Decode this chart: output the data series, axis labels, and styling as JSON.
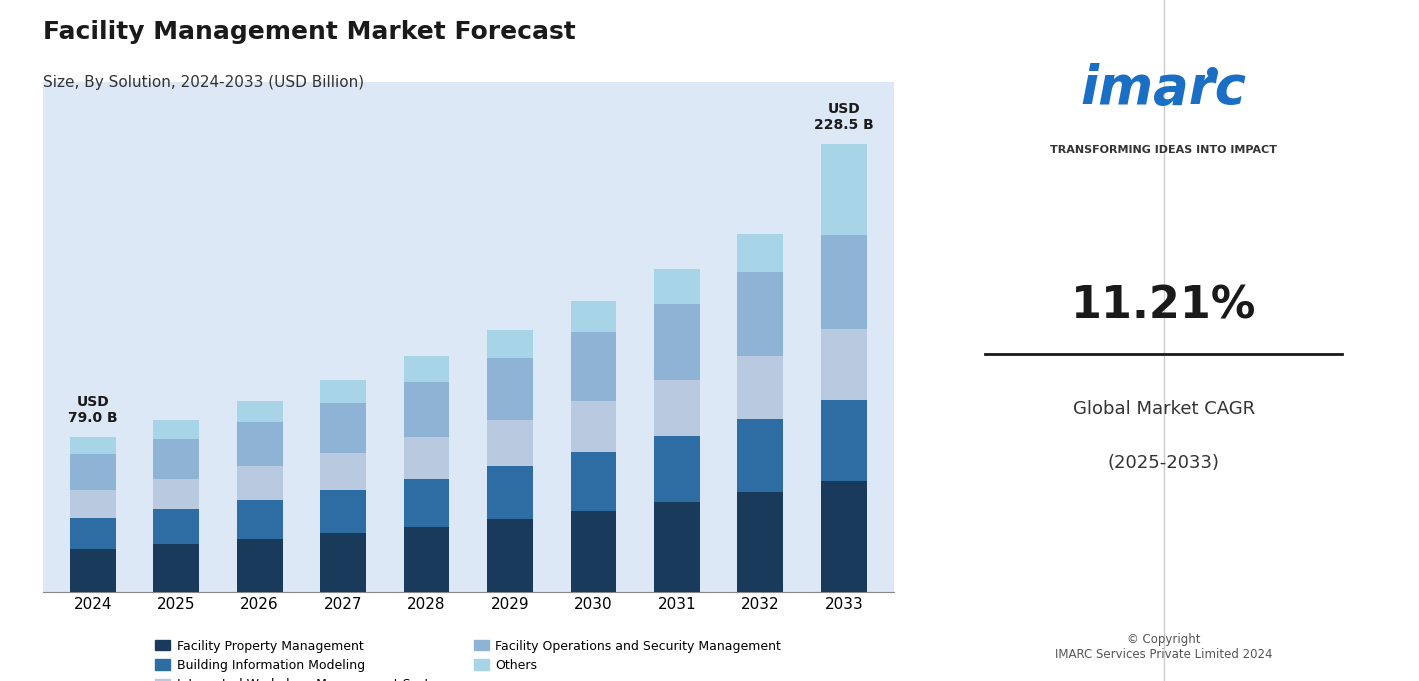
{
  "title": "Facility Management Market Forecast",
  "subtitle": "Size, By Solution, 2024-2033 (USD Billion)",
  "years": [
    2024,
    2025,
    2026,
    2027,
    2028,
    2029,
    2030,
    2031,
    2032,
    2033
  ],
  "segments": {
    "Facility Property Management": [
      22.0,
      24.5,
      27.2,
      30.2,
      33.5,
      37.2,
      41.3,
      45.9,
      51.0,
      56.5
    ],
    "Building Information Modeling": [
      16.0,
      17.8,
      19.8,
      22.0,
      24.5,
      27.2,
      30.2,
      33.5,
      37.2,
      41.5
    ],
    "Integrated Workplace Management System": [
      14.0,
      15.5,
      17.2,
      19.0,
      21.2,
      23.5,
      26.2,
      29.0,
      32.2,
      36.0
    ],
    "Facility Operations and Security Management": [
      18.5,
      20.5,
      22.8,
      25.3,
      28.1,
      31.3,
      34.8,
      38.5,
      42.6,
      48.0
    ],
    "Others": [
      8.5,
      9.4,
      10.5,
      11.7,
      13.0,
      14.4,
      16.0,
      17.8,
      19.7,
      46.5
    ]
  },
  "totals": [
    79.0,
    87.7,
    97.5,
    108.2,
    120.3,
    133.6,
    148.5,
    164.7,
    182.7,
    228.5
  ],
  "colors": {
    "Facility Property Management": "#1a3a5c",
    "Building Information Modeling": "#2e6da4",
    "Integrated Workplace Management System": "#b8c9e0",
    "Facility Operations and Security Management": "#8fb3d4",
    "Others": "#a8d4e8"
  },
  "bg_color": "#dce8f5",
  "annotation_2024": "USD\n79.0 B",
  "annotation_2033": "USD\n228.5 B",
  "ylim": [
    0,
    260
  ],
  "bar_width": 0.55
}
